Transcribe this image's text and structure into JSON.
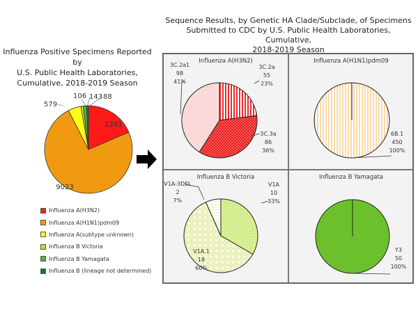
{
  "chart_data": [
    {
      "type": "pie",
      "title": "Influenza Positive Specimens Reported by U.S. Public Health Laboratories, Cumulative, 2018-2019 Season",
      "title_lines": [
        "Influenza Positive Specimens Reported by",
        "U.S. Public Health Laboratories,",
        "Cumulative, 2018-2019 Season"
      ],
      "slices": [
        {
          "label": "Influenza A(H3N2)",
          "value": 2261,
          "color": "#ff1a1a"
        },
        {
          "label": "Influenza A(H1N1)pdm09",
          "value": 9023,
          "color": "#f09a12"
        },
        {
          "label": "Influenza A(subtype unknown)",
          "value": 579,
          "color": "#ffff1a"
        },
        {
          "label": "Influenza B Victoria",
          "value": 106,
          "color": "#b8e02a"
        },
        {
          "label": "Influenza B Yamagata",
          "value": 143,
          "color": "#4fb53a"
        },
        {
          "label": "Influenza B (lineage not determined)",
          "value": 88,
          "color": "#187a2e"
        }
      ],
      "legend_position": "bottom"
    },
    {
      "type": "pie",
      "title": "Influenza A(H3N2)",
      "slices": [
        {
          "label": "3C.2a",
          "value": 55,
          "percent": "23%",
          "color": "#ee2a2a",
          "pattern": "vstripes"
        },
        {
          "label": "3C.3a",
          "value": 86,
          "percent": "36%",
          "color": "#ee2a2a",
          "pattern": "checker"
        },
        {
          "label": "3C.2a1",
          "value": 98,
          "percent": "41%",
          "color": "#fbd8d8",
          "pattern": "dots"
        }
      ]
    },
    {
      "type": "pie",
      "title": "Influenza A(H1N1)pdm09",
      "slices": [
        {
          "label": "6B.1",
          "value": 450,
          "percent": "100%",
          "color": "#f9d9a4",
          "pattern": "vstripes"
        }
      ]
    },
    {
      "type": "pie",
      "title": "Influenza B Victoria",
      "slices": [
        {
          "label": "V1A",
          "value": 10,
          "percent": "33%",
          "color": "#d4ec8c",
          "pattern": "dots"
        },
        {
          "label": "V1A.1",
          "value": 18,
          "percent": "60%",
          "color": "#fafadc",
          "pattern": "grid"
        },
        {
          "label": "V1A-3DEL",
          "value": 2,
          "percent": "7%",
          "color": "#eef5c0",
          "pattern": "hstripes"
        }
      ]
    },
    {
      "type": "pie",
      "title": "Influenza B Yamagata",
      "slices": [
        {
          "label": "Y3",
          "value": 50,
          "percent": "100%",
          "color": "#6cc02c",
          "pattern": "solid"
        }
      ]
    }
  ],
  "right_title_lines": [
    "Sequence Results, by Genetic HA Clade/Subclade, of Specimens",
    "Submitted to CDC by U.S. Public Health Laboratories, Cumulative,",
    "2018-2019 Season"
  ],
  "arrow_icon": "right-arrow"
}
